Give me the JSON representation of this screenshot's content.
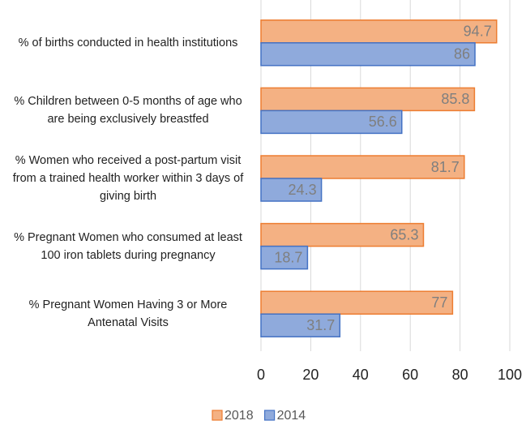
{
  "chart_data": {
    "type": "bar",
    "orientation": "horizontal",
    "categories": [
      "% of births conducted in health institutions",
      "% Children between 0-5 months of age who are being exclusively breastfed",
      "% Women who received a post-partum visit from a trained health worker within 3 days of giving birth",
      "% Pregnant Women who consumed at least 100 iron tablets during pregnancy",
      "% Pregnant Women Having 3 or More Antenatal Visits"
    ],
    "series": [
      {
        "name": "2018",
        "color": "#f4b183",
        "edgecolor": "#ed7d31",
        "values": [
          94.7,
          85.8,
          81.7,
          65.3,
          77
        ]
      },
      {
        "name": "2014",
        "color": "#8faadc",
        "edgecolor": "#4472c4",
        "values": [
          86,
          56.6,
          24.3,
          18.7,
          31.7
        ]
      }
    ],
    "xlim": [
      0,
      100
    ],
    "xticks": [
      0,
      20,
      40,
      60,
      80,
      100
    ],
    "grid": true,
    "legend": "bottom"
  }
}
